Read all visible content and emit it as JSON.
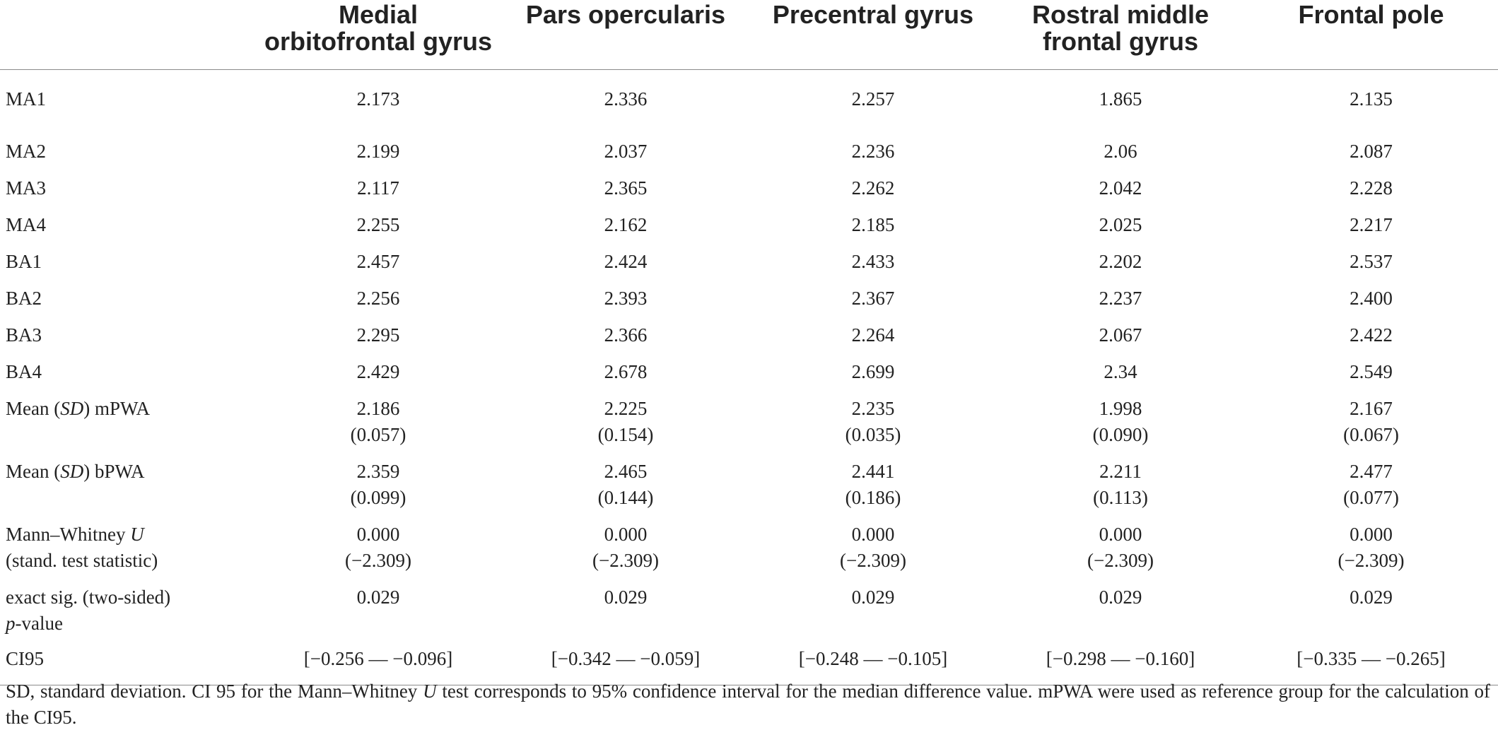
{
  "table": {
    "headers": [
      "",
      "Medial orbitofrontal gyrus",
      "Pars opercularis",
      "Precentral gyrus",
      "Rostral middle frontal gyrus",
      "Frontal pole"
    ],
    "rows": [
      {
        "label_pre": "MA1",
        "label_em": "",
        "label_post": "",
        "label2_pre": "",
        "label2_em": "",
        "label2_post": "",
        "values": [
          [
            "2.173",
            ""
          ],
          [
            "2.336",
            ""
          ],
          [
            "2.257",
            ""
          ],
          [
            "1.865",
            ""
          ],
          [
            "2.135",
            ""
          ]
        ]
      },
      {
        "label_pre": "MA2",
        "label_em": "",
        "label_post": "",
        "label2_pre": "",
        "label2_em": "",
        "label2_post": "",
        "values": [
          [
            "2.199",
            ""
          ],
          [
            "2.037",
            ""
          ],
          [
            "2.236",
            ""
          ],
          [
            "2.06",
            ""
          ],
          [
            "2.087",
            ""
          ]
        ]
      },
      {
        "label_pre": "MA3",
        "label_em": "",
        "label_post": "",
        "label2_pre": "",
        "label2_em": "",
        "label2_post": "",
        "values": [
          [
            "2.117",
            ""
          ],
          [
            "2.365",
            ""
          ],
          [
            "2.262",
            ""
          ],
          [
            "2.042",
            ""
          ],
          [
            "2.228",
            ""
          ]
        ]
      },
      {
        "label_pre": "MA4",
        "label_em": "",
        "label_post": "",
        "label2_pre": "",
        "label2_em": "",
        "label2_post": "",
        "values": [
          [
            "2.255",
            ""
          ],
          [
            "2.162",
            ""
          ],
          [
            "2.185",
            ""
          ],
          [
            "2.025",
            ""
          ],
          [
            "2.217",
            ""
          ]
        ]
      },
      {
        "label_pre": "BA1",
        "label_em": "",
        "label_post": "",
        "label2_pre": "",
        "label2_em": "",
        "label2_post": "",
        "values": [
          [
            "2.457",
            ""
          ],
          [
            "2.424",
            ""
          ],
          [
            "2.433",
            ""
          ],
          [
            "2.202",
            ""
          ],
          [
            "2.537",
            ""
          ]
        ]
      },
      {
        "label_pre": "BA2",
        "label_em": "",
        "label_post": "",
        "label2_pre": "",
        "label2_em": "",
        "label2_post": "",
        "values": [
          [
            "2.256",
            ""
          ],
          [
            "2.393",
            ""
          ],
          [
            "2.367",
            ""
          ],
          [
            "2.237",
            ""
          ],
          [
            "2.400",
            ""
          ]
        ]
      },
      {
        "label_pre": "BA3",
        "label_em": "",
        "label_post": "",
        "label2_pre": "",
        "label2_em": "",
        "label2_post": "",
        "values": [
          [
            "2.295",
            ""
          ],
          [
            "2.366",
            ""
          ],
          [
            "2.264",
            ""
          ],
          [
            "2.067",
            ""
          ],
          [
            "2.422",
            ""
          ]
        ]
      },
      {
        "label_pre": "BA4",
        "label_em": "",
        "label_post": "",
        "label2_pre": "",
        "label2_em": "",
        "label2_post": "",
        "values": [
          [
            "2.429",
            ""
          ],
          [
            "2.678",
            ""
          ],
          [
            "2.699",
            ""
          ],
          [
            "2.34",
            ""
          ],
          [
            "2.549",
            ""
          ]
        ]
      },
      {
        "label_pre": "Mean (",
        "label_em": "SD",
        "label_post": ") mPWA",
        "label2_pre": "",
        "label2_em": "",
        "label2_post": "",
        "values": [
          [
            "2.186",
            "(0.057)"
          ],
          [
            "2.225",
            "(0.154)"
          ],
          [
            "2.235",
            "(0.035)"
          ],
          [
            "1.998",
            "(0.090)"
          ],
          [
            "2.167",
            "(0.067)"
          ]
        ]
      },
      {
        "label_pre": "Mean (",
        "label_em": "SD",
        "label_post": ") bPWA",
        "label2_pre": "",
        "label2_em": "",
        "label2_post": "",
        "values": [
          [
            "2.359",
            "(0.099)"
          ],
          [
            "2.465",
            "(0.144)"
          ],
          [
            "2.441",
            "(0.186)"
          ],
          [
            "2.211",
            "(0.113)"
          ],
          [
            "2.477",
            "(0.077)"
          ]
        ]
      },
      {
        "label_pre": "Mann–Whitney ",
        "label_em": "U",
        "label_post": "",
        "label2_pre": "(stand. test statistic)",
        "label2_em": "",
        "label2_post": "",
        "values": [
          [
            "0.000",
            "(−2.309)"
          ],
          [
            "0.000",
            "(−2.309)"
          ],
          [
            "0.000",
            "(−2.309)"
          ],
          [
            "0.000",
            "(−2.309)"
          ],
          [
            "0.000",
            "(−2.309)"
          ]
        ]
      },
      {
        "label_pre": "exact sig. (two-sided)",
        "label_em": "",
        "label_post": "",
        "label2_pre": "",
        "label2_em": "p",
        "label2_post": "-value",
        "values": [
          [
            "0.029",
            ""
          ],
          [
            "0.029",
            ""
          ],
          [
            "0.029",
            ""
          ],
          [
            "0.029",
            ""
          ],
          [
            "0.029",
            ""
          ]
        ]
      },
      {
        "label_pre": "CI95",
        "label_em": "",
        "label_post": "",
        "label2_pre": "",
        "label2_em": "",
        "label2_post": "",
        "values": [
          [
            "[−0.256 — −0.096]",
            ""
          ],
          [
            "[−0.342 — −0.059]",
            ""
          ],
          [
            "[−0.248 — −0.105]",
            ""
          ],
          [
            "[−0.298 — −0.160]",
            ""
          ],
          [
            "[−0.335 — −0.265]",
            ""
          ]
        ]
      }
    ]
  },
  "footnote": {
    "part1": "SD, standard deviation. CI 95 for the Mann–Whitney ",
    "em": "U",
    "part2": " test corresponds to 95% confidence interval for the median difference value. mPWA were used as reference group for the calculation of the CI95."
  }
}
